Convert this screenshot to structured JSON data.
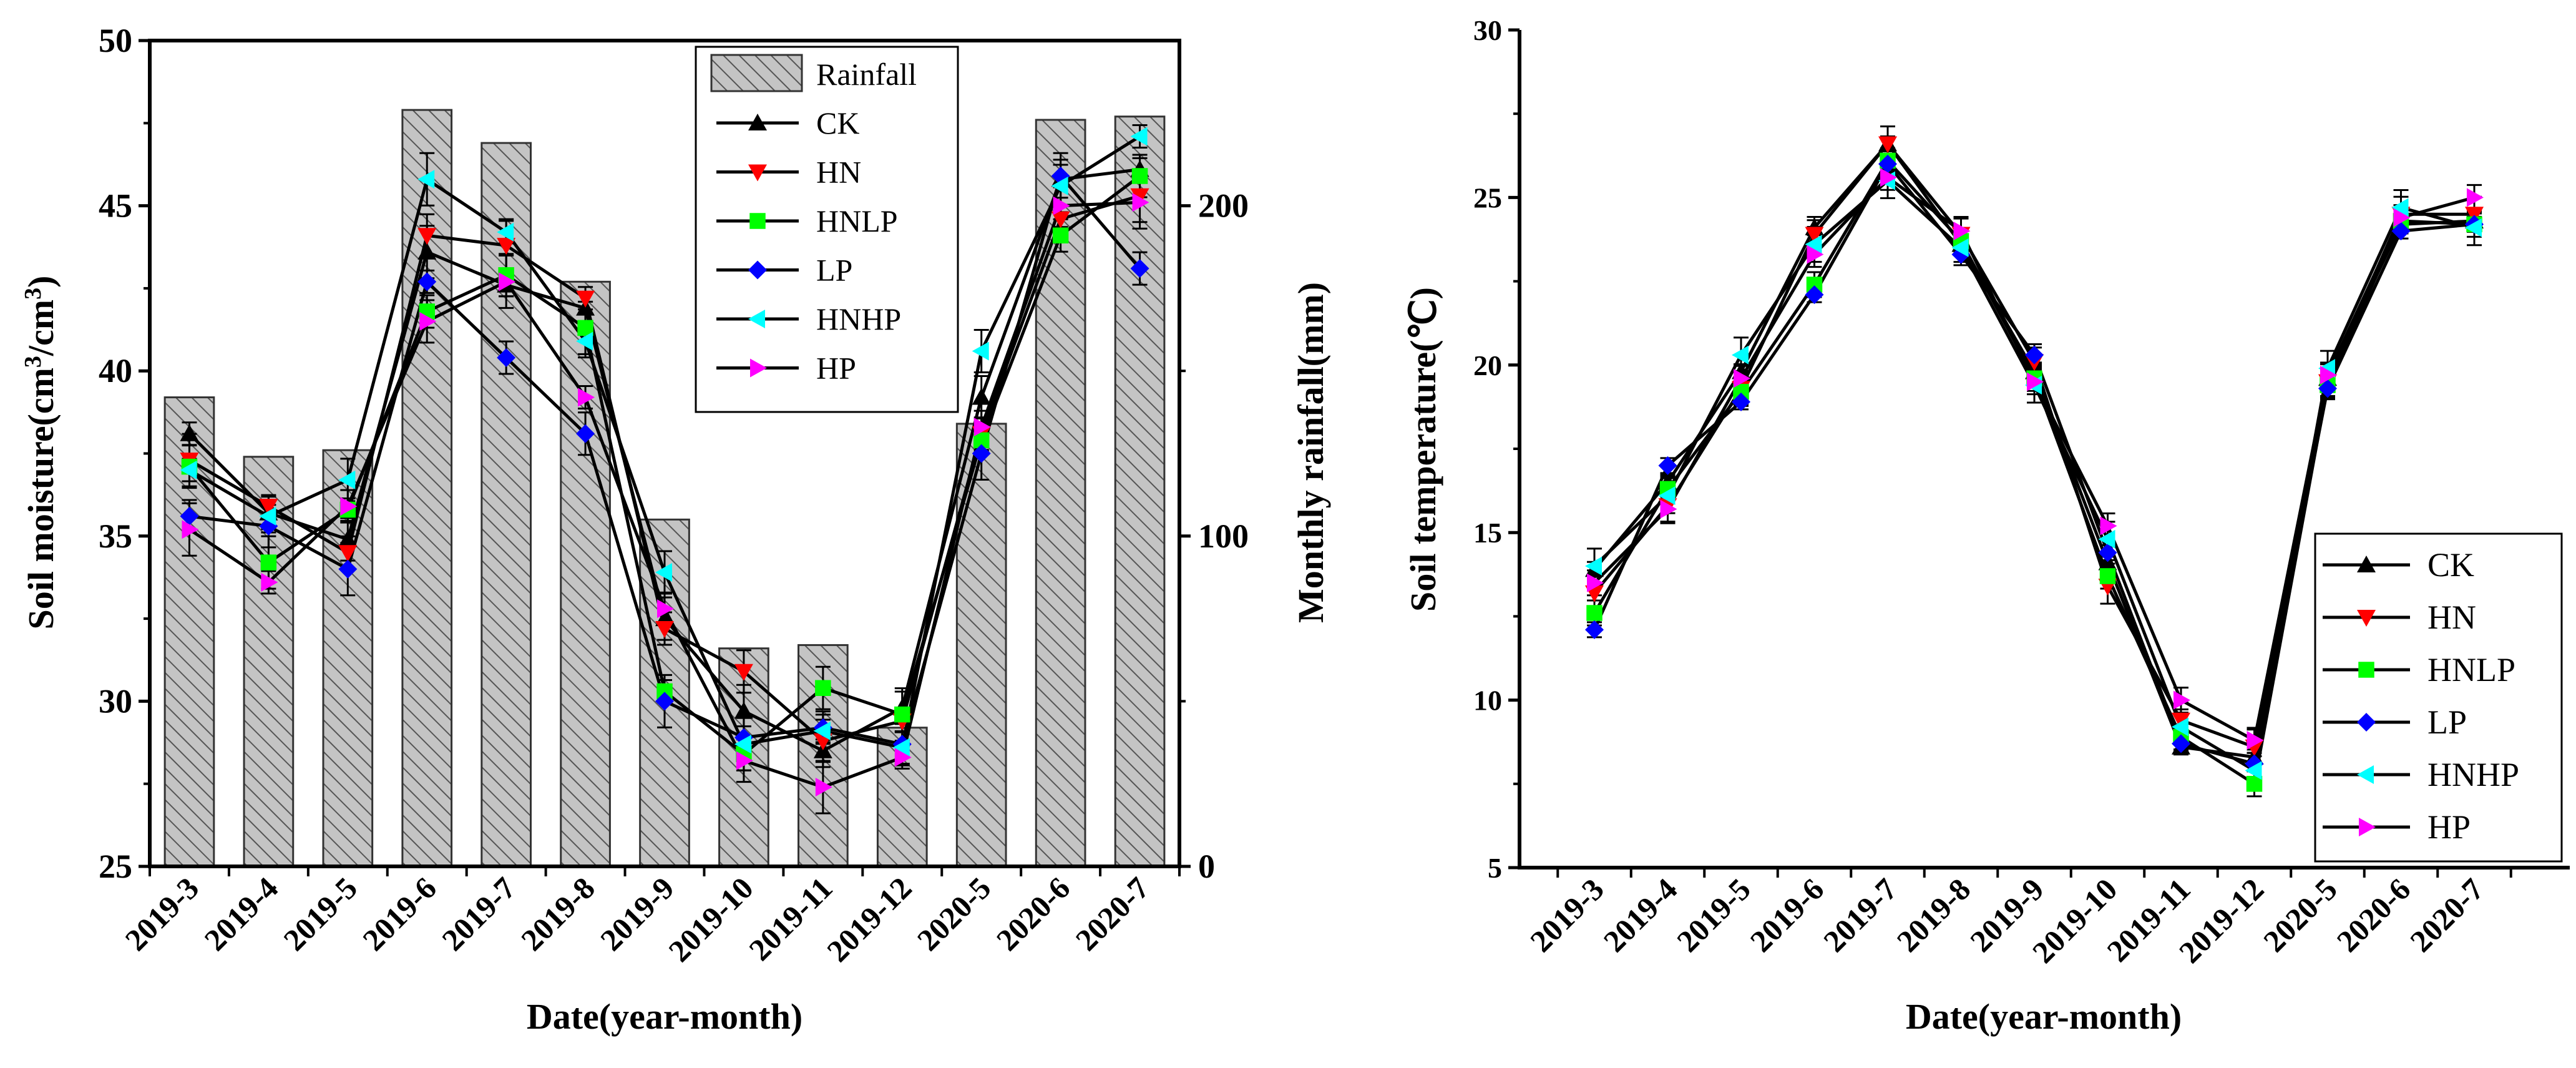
{
  "chart_data": [
    {
      "type": "bar+line",
      "title": "",
      "xlabel": "Date(year-month)",
      "ylabel_main": "Soil moisture(cm",
      "ylabel_sup1": "3",
      "ylabel_mid": "/cm",
      "ylabel_sup2": "3",
      "ylabel_end": ")",
      "y2label": "Monthly  rainfall(mm)",
      "categories": [
        "2019-3",
        "2019-4",
        "2019-5",
        "2019-6",
        "2019-7",
        "2019-8",
        "2019-9",
        "2019-10",
        "2019-11",
        "2019-12",
        "2020-5",
        "2020-6",
        "2020-7"
      ],
      "ylim": [
        25,
        50
      ],
      "yticks": [
        "25",
        "30",
        "35",
        "40",
        "45",
        "50"
      ],
      "y2lim": [
        0,
        250
      ],
      "y2ticks": [
        "0",
        "100",
        "200"
      ],
      "rainfall": {
        "name": "Rainfall",
        "values": [
          142,
          124,
          126,
          229,
          219,
          177,
          105,
          66,
          67,
          42,
          134,
          226,
          227
        ]
      },
      "series": [
        {
          "name": "CK",
          "color": "#000000",
          "marker": "triangle-up",
          "values": [
            38.1,
            35.7,
            34.9,
            43.6,
            42.6,
            41.9,
            32.5,
            29.7,
            28.5,
            29.8,
            39.2,
            45.8,
            46.1
          ]
        },
        {
          "name": "HN",
          "color": "#ff0000",
          "marker": "triangle-down",
          "values": [
            37.3,
            35.9,
            34.5,
            44.1,
            43.8,
            42.2,
            32.2,
            30.9,
            28.8,
            29.4,
            38.1,
            44.6,
            45.3
          ]
        },
        {
          "name": "HNLP",
          "color": "#00ff00",
          "marker": "square",
          "values": [
            37.1,
            34.2,
            35.8,
            41.8,
            42.9,
            41.3,
            30.3,
            28.4,
            30.4,
            29.6,
            37.9,
            44.1,
            45.9
          ]
        },
        {
          "name": "LP",
          "color": "#0000ff",
          "marker": "diamond",
          "values": [
            35.6,
            35.3,
            34.0,
            42.7,
            40.4,
            38.1,
            30.0,
            28.9,
            29.2,
            28.7,
            37.5,
            45.9,
            43.1
          ]
        },
        {
          "name": "HNHP",
          "color": "#00ffff",
          "marker": "triangle-left",
          "values": [
            37.0,
            35.6,
            36.7,
            45.8,
            44.2,
            40.9,
            33.9,
            28.7,
            29.1,
            28.6,
            40.6,
            45.6,
            47.1
          ]
        },
        {
          "name": "HP",
          "color": "#ff00ff",
          "marker": "triangle-right",
          "values": [
            35.2,
            33.6,
            35.9,
            41.5,
            42.7,
            39.2,
            32.8,
            28.2,
            27.4,
            28.3,
            38.3,
            45.0,
            45.1
          ]
        }
      ],
      "legend_position": "top-right"
    },
    {
      "type": "line",
      "title": "",
      "xlabel": "Date(year-month)",
      "ylabel": "Soil temperature(℃)",
      "categories": [
        "2019-3",
        "2019-4",
        "2019-5",
        "2019-6",
        "2019-7",
        "2019-8",
        "2019-9",
        "2019-10",
        "2019-11",
        "2019-12",
        "2020-5",
        "2020-6",
        "2020-7"
      ],
      "ylim": [
        5,
        30
      ],
      "yticks": [
        "5",
        "10",
        "15",
        "20",
        "25",
        "30"
      ],
      "series": [
        {
          "name": "CK",
          "color": "#000000",
          "marker": "triangle-up",
          "values": [
            13.9,
            16.5,
            19.8,
            24.1,
            26.6,
            23.6,
            19.8,
            14.1,
            8.6,
            8.3,
            19.6,
            24.2,
            24.3
          ]
        },
        {
          "name": "HN",
          "color": "#ff0000",
          "marker": "triangle-down",
          "values": [
            13.2,
            15.8,
            19.3,
            23.9,
            26.6,
            23.9,
            20.1,
            13.4,
            9.4,
            8.6,
            19.5,
            24.5,
            24.5
          ]
        },
        {
          "name": "HNLP",
          "color": "#00ff00",
          "marker": "square",
          "values": [
            12.6,
            16.3,
            19.2,
            22.4,
            26.1,
            23.7,
            19.6,
            13.7,
            8.9,
            7.5,
            19.4,
            24.3,
            24.2
          ]
        },
        {
          "name": "LP",
          "color": "#0000ff",
          "marker": "diamond",
          "values": [
            12.1,
            17.0,
            18.9,
            22.1,
            26.0,
            23.3,
            20.3,
            14.4,
            8.7,
            8.1,
            19.3,
            24.0,
            24.2
          ]
        },
        {
          "name": "HNHP",
          "color": "#00ffff",
          "marker": "triangle-left",
          "values": [
            14.0,
            16.1,
            20.3,
            23.6,
            25.5,
            23.5,
            19.4,
            14.8,
            9.2,
            7.9,
            19.9,
            24.7,
            24.1
          ]
        },
        {
          "name": "HP",
          "color": "#ff00ff",
          "marker": "triangle-right",
          "values": [
            13.5,
            15.7,
            19.6,
            23.3,
            25.6,
            24.0,
            19.5,
            15.2,
            10.0,
            8.8,
            19.7,
            24.4,
            25.0
          ]
        }
      ],
      "legend_position": "bottom-right"
    }
  ]
}
